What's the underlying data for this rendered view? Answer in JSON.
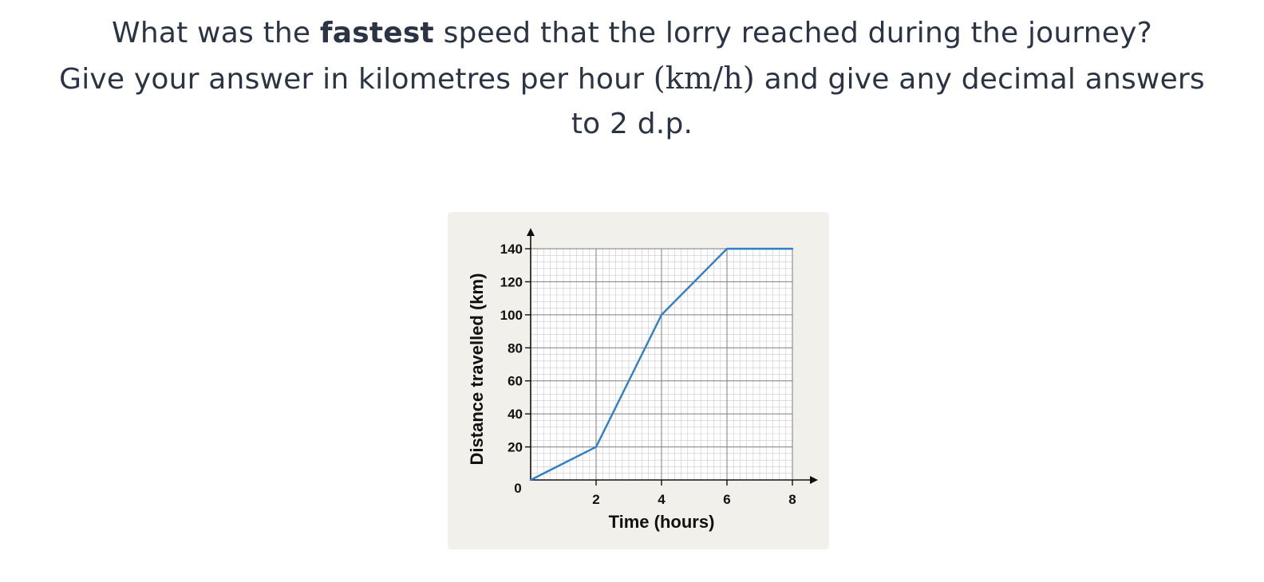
{
  "question": {
    "line1_before": "What was the ",
    "line1_bold": "fastest",
    "line1_after": " speed that the lorry reached during the journey?",
    "line2_before": "Give your answer in kilometres per hour ",
    "line2_math": "(km/h)",
    "line2_after": " and give any decimal answers",
    "line3": "to 2 d.p."
  },
  "chart_data": {
    "type": "line",
    "title": "",
    "xlabel": "Time (hours)",
    "ylabel": "Distance travelled (km)",
    "xlim": [
      0,
      8
    ],
    "ylim": [
      0,
      140
    ],
    "x_ticks": [
      2,
      4,
      6,
      8
    ],
    "y_ticks": [
      20,
      40,
      60,
      80,
      100,
      120,
      140
    ],
    "origin_label": "0",
    "grid": true,
    "series": [
      {
        "x": [
          0,
          2,
          4,
          6,
          8
        ],
        "y": [
          0,
          20,
          100,
          140,
          140
        ],
        "color": "#2f7fc8"
      }
    ]
  }
}
